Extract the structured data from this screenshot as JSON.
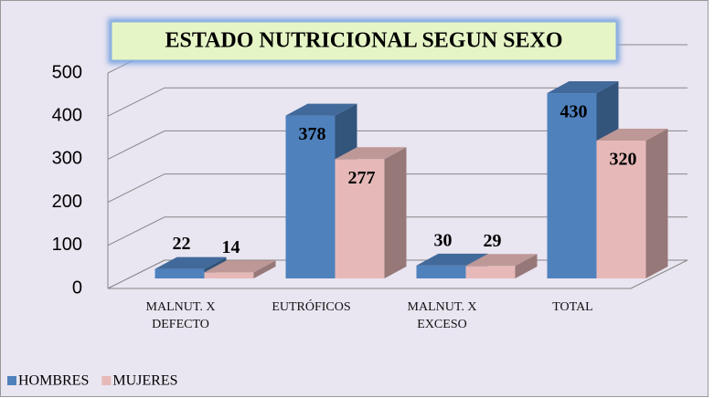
{
  "chart_data": {
    "type": "bar",
    "title": "ESTADO NUTRICIONAL SEGUN SEXO",
    "categories": [
      "MALNUT. X DEFECTO",
      "EUTRÓFICOS",
      "MALNUT. X EXCESO",
      "TOTAL"
    ],
    "series": [
      {
        "name": "HOMBRES",
        "color": "#4f81bd",
        "values": [
          22,
          378,
          30,
          430
        ]
      },
      {
        "name": "MUJERES",
        "color": "#e6b9b8",
        "values": [
          14,
          277,
          29,
          320
        ]
      }
    ],
    "ylim": [
      0,
      500
    ],
    "yticks": [
      0,
      100,
      200,
      300,
      400,
      500
    ],
    "grid": true,
    "legend": "bottom-left"
  }
}
